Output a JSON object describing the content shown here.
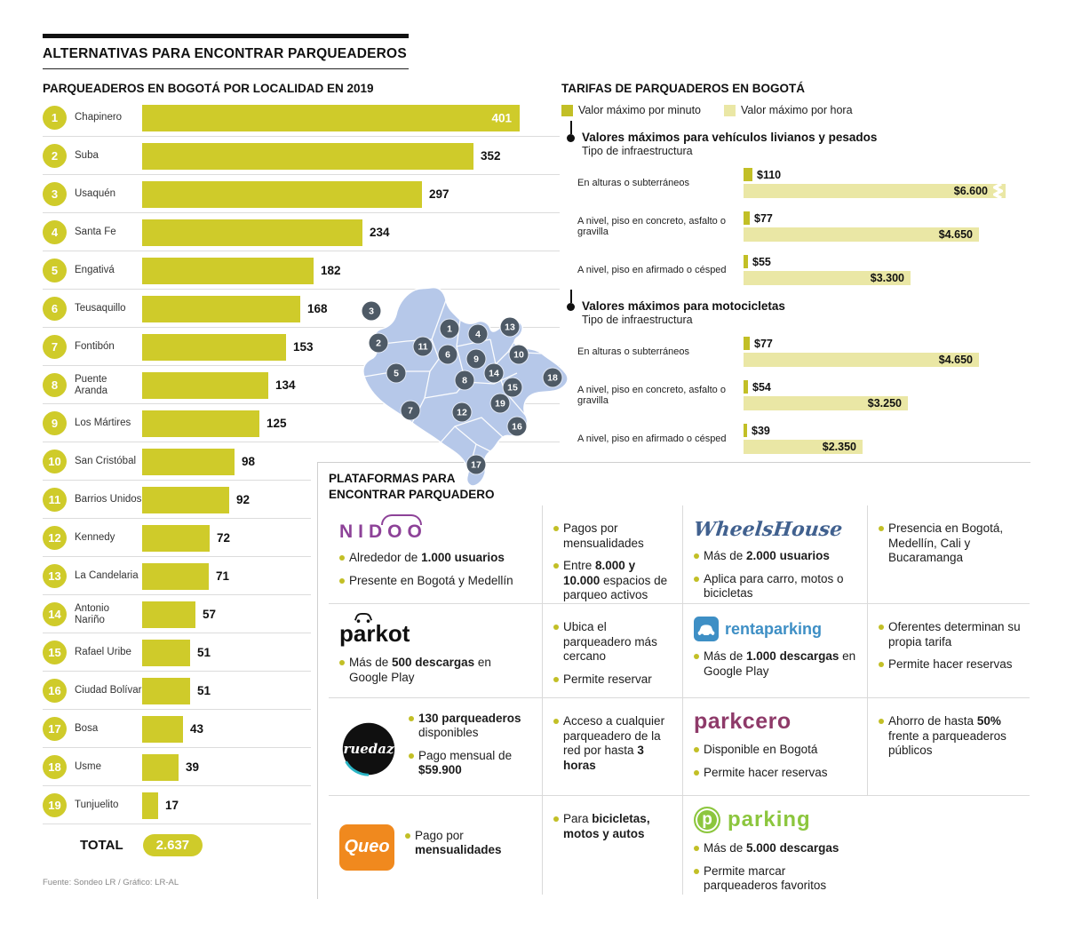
{
  "header": {
    "title": "ALTERNATIVAS PARA ENCONTRAR PARQUEADEROS"
  },
  "localities": {
    "title": "PARQUEADEROS EN BOGOTÁ POR LOCALIDAD EN 2019",
    "max": 401,
    "rows": [
      {
        "rank": "1",
        "name": "Chapinero",
        "value": 401,
        "inside": true
      },
      {
        "rank": "2",
        "name": "Suba",
        "value": 352
      },
      {
        "rank": "3",
        "name": "Usaquén",
        "value": 297
      },
      {
        "rank": "4",
        "name": "Santa Fe",
        "value": 234
      },
      {
        "rank": "5",
        "name": "Engativá",
        "value": 182
      },
      {
        "rank": "6",
        "name": "Teusaquillo",
        "value": 168
      },
      {
        "rank": "7",
        "name": "Fontibón",
        "value": 153
      },
      {
        "rank": "8",
        "name": "Puente Aranda",
        "value": 134
      },
      {
        "rank": "9",
        "name": "Los Mártires",
        "value": 125
      },
      {
        "rank": "10",
        "name": "San Cristóbal",
        "value": 98
      },
      {
        "rank": "11",
        "name": "Barrios Unidos",
        "value": 92
      },
      {
        "rank": "12",
        "name": "Kennedy",
        "value": 72
      },
      {
        "rank": "13",
        "name": "La Candelaria",
        "value": 71
      },
      {
        "rank": "14",
        "name": "Antonio Nariño",
        "value": 57
      },
      {
        "rank": "15",
        "name": "Rafael Uribe",
        "value": 51
      },
      {
        "rank": "16",
        "name": "Ciudad Bolívar",
        "value": 51
      },
      {
        "rank": "17",
        "name": "Bosa",
        "value": 43
      },
      {
        "rank": "18",
        "name": "Usme",
        "value": 39
      },
      {
        "rank": "19",
        "name": "Tunjuelito",
        "value": 17
      }
    ],
    "total_label": "TOTAL",
    "total_value": "2.637",
    "source": "Fuente: Sondeo LR / Gráfico: LR-AL"
  },
  "map": {
    "markers": [
      {
        "n": "3",
        "x": 52,
        "y": 30
      },
      {
        "n": "2",
        "x": 60,
        "y": 66
      },
      {
        "n": "11",
        "x": 110,
        "y": 70
      },
      {
        "n": "1",
        "x": 140,
        "y": 50
      },
      {
        "n": "4",
        "x": 172,
        "y": 56
      },
      {
        "n": "13",
        "x": 208,
        "y": 48
      },
      {
        "n": "6",
        "x": 138,
        "y": 79
      },
      {
        "n": "9",
        "x": 170,
        "y": 84
      },
      {
        "n": "10",
        "x": 218,
        "y": 79
      },
      {
        "n": "5",
        "x": 80,
        "y": 100
      },
      {
        "n": "14",
        "x": 190,
        "y": 100
      },
      {
        "n": "8",
        "x": 157,
        "y": 108
      },
      {
        "n": "15",
        "x": 211,
        "y": 116
      },
      {
        "n": "18",
        "x": 256,
        "y": 105
      },
      {
        "n": "7",
        "x": 96,
        "y": 142
      },
      {
        "n": "12",
        "x": 154,
        "y": 144
      },
      {
        "n": "19",
        "x": 197,
        "y": 134
      },
      {
        "n": "16",
        "x": 216,
        "y": 160
      },
      {
        "n": "17",
        "x": 170,
        "y": 203
      }
    ]
  },
  "tariffs": {
    "title": "TARIFAS DE PARQUADEROS EN BOGOTÁ",
    "legend": [
      {
        "label": "Valor máximo por minuto"
      },
      {
        "label": "Valor máximo por hora"
      }
    ],
    "groups": [
      {
        "title": "Valores máximos para vehículos livianos y pesados",
        "subtitle": "Tipo de infraestructura",
        "rows": [
          {
            "label": "En alturas o subterráneos",
            "minute_label": "$110",
            "minute": 110,
            "hour_label": "$6.600",
            "hour": 6600,
            "break": true
          },
          {
            "label": "A nivel, piso en concreto, asfalto o gravilla",
            "minute_label": "$77",
            "minute": 77,
            "hour_label": "$4.650",
            "hour": 4650
          },
          {
            "label": "A nivel, piso en afirmado o césped",
            "minute_label": "$55",
            "minute": 55,
            "hour_label": "$3.300",
            "hour": 3300
          }
        ]
      },
      {
        "title": "Valores máximos para motocicletas",
        "subtitle": "Tipo de infraestructura",
        "rows": [
          {
            "label": "En alturas o subterráneos",
            "minute_label": "$77",
            "minute": 77,
            "hour_label": "$4.650",
            "hour": 4650
          },
          {
            "label": "A nivel, piso en concreto, asfalto o gravilla",
            "minute_label": "$54",
            "minute": 54,
            "hour_label": "$3.250",
            "hour": 3250
          },
          {
            "label": "A nivel, piso en afirmado o césped",
            "minute_label": "$39",
            "minute": 39,
            "hour_label": "$2.350",
            "hour": 2350
          }
        ]
      }
    ]
  },
  "platforms": {
    "title_line1": "PLATAFORMAS PARA",
    "title_line2": "ENCONTRAR PARQUADERO",
    "logos": {
      "nidoo": "NIDOO",
      "wheelshouse": "WheelsHouse",
      "parkot": "parkot",
      "rentaparking": "rentaparking",
      "ruedaz": "ruedaz",
      "parkcero": "parkcero",
      "queo": "Queo",
      "parking": "parking"
    },
    "grid": [
      [
        {
          "logo": "nidoo",
          "facts": [
            [
              {
                "t": "Alrededor de "
              },
              {
                "t": "1.000 usuarios",
                "b": true
              }
            ],
            [
              {
                "t": "Presente en Bogotá y Medellín"
              }
            ]
          ]
        },
        {
          "facts": [
            [
              {
                "t": "Pagos por mensualidades"
              }
            ],
            [
              {
                "t": "Entre "
              },
              {
                "t": "8.000 y 10.000",
                "b": true
              },
              {
                "t": " espacios de parqueo activos"
              }
            ]
          ]
        },
        {
          "logo": "wheelshouse",
          "facts": [
            [
              {
                "t": "Más de "
              },
              {
                "t": "2.000 usuarios",
                "b": true
              }
            ],
            [
              {
                "t": "Aplica para carro, motos o bicicletas"
              }
            ]
          ]
        },
        {
          "facts": [
            [
              {
                "t": "Presencia en Bogotá, Medellín, Cali y Bucaramanga"
              }
            ]
          ]
        }
      ],
      [
        {
          "logo": "parkot",
          "facts": [
            [
              {
                "t": "Más de "
              },
              {
                "t": "500 descargas",
                "b": true
              },
              {
                "t": " en Google Play"
              }
            ]
          ]
        },
        {
          "facts": [
            [
              {
                "t": "Ubica el parqueadero más cercano"
              }
            ],
            [
              {
                "t": "Permite reservar"
              }
            ]
          ]
        },
        {
          "logo": "rentaparking",
          "facts": [
            [
              {
                "t": "Más de "
              },
              {
                "t": "1.000 descargas",
                "b": true
              },
              {
                "t": " en Google Play"
              }
            ]
          ]
        },
        {
          "facts": [
            [
              {
                "t": "Oferentes determinan su propia tarifa"
              }
            ],
            [
              {
                "t": "Permite hacer reservas"
              }
            ]
          ]
        }
      ],
      [
        {
          "logo": "ruedaz",
          "side": true,
          "facts": [
            [
              {
                "t": "130 parqueaderos",
                "b": true
              },
              {
                "t": " disponibles"
              }
            ],
            [
              {
                "t": "Pago mensual de "
              },
              {
                "t": "$59.900",
                "b": true
              }
            ]
          ]
        },
        {
          "facts": [
            [
              {
                "t": "Acceso a cualquier parqueadero de la red por hasta "
              },
              {
                "t": "3 horas",
                "b": true
              }
            ]
          ]
        },
        {
          "logo": "parkcero",
          "facts": [
            [
              {
                "t": "Disponible en Bogotá"
              }
            ],
            [
              {
                "t": "Permite hacer reservas"
              }
            ]
          ]
        },
        {
          "facts": [
            [
              {
                "t": "Ahorro de hasta "
              },
              {
                "t": "50%",
                "b": true
              },
              {
                "t": " frente a parqueaderos públicos"
              }
            ]
          ]
        }
      ],
      [
        {
          "logo": "queo",
          "side": true,
          "facts": [
            [
              {
                "t": "Pago por "
              },
              {
                "t": "mensualidades",
                "b": true
              }
            ]
          ]
        },
        {
          "facts": [
            [
              {
                "t": "Para "
              },
              {
                "t": "bicicletas, motos y autos",
                "b": true
              }
            ]
          ]
        },
        {
          "logo": "parking",
          "facts": [
            [
              {
                "t": "Más de "
              },
              {
                "t": "5.000 descargas",
                "b": true
              }
            ],
            [
              {
                "t": "Permite marcar parqueaderos favoritos"
              }
            ]
          ]
        },
        {
          "facts": []
        }
      ]
    ]
  },
  "colors": {
    "bar_olive": "#cfcb2a",
    "minute_olive": "#c2bf26",
    "hour_light": "#eae7a5",
    "map_blue": "#b6c8e9",
    "marker_slate": "#4e5a66"
  },
  "chart_data": [
    {
      "type": "bar",
      "orientation": "horizontal",
      "title": "PARQUEADEROS EN BOGOTÁ POR LOCALIDAD EN 2019",
      "categories": [
        "Chapinero",
        "Suba",
        "Usaquén",
        "Santa Fe",
        "Engativá",
        "Teusaquillo",
        "Fontibón",
        "Puente Aranda",
        "Los Mártires",
        "San Cristóbal",
        "Barrios Unidos",
        "Kennedy",
        "La Candelaria",
        "Antonio Nariño",
        "Rafael Uribe",
        "Ciudad Bolívar",
        "Bosa",
        "Usme",
        "Tunjuelito"
      ],
      "values": [
        401,
        352,
        297,
        234,
        182,
        168,
        153,
        134,
        125,
        98,
        92,
        72,
        71,
        57,
        51,
        51,
        43,
        39,
        17
      ],
      "total": 2637,
      "xlim": [
        0,
        401
      ],
      "source": "Fuente: Sondeo LR / Gráfico: LR-AL"
    },
    {
      "type": "bar",
      "orientation": "horizontal",
      "title": "TARIFAS DE PARQUADEROS EN BOGOTÁ",
      "legend": [
        "Valor máximo por minuto",
        "Valor máximo por hora"
      ],
      "groups": [
        {
          "name": "Valores máximos para vehículos livianos y pesados",
          "categories": [
            "En alturas o subterráneos",
            "A nivel, piso en concreto, asfalto o gravilla",
            "A nivel, piso en afirmado o césped"
          ],
          "series": [
            {
              "name": "Valor máximo por minuto",
              "values": [
                110,
                77,
                55
              ]
            },
            {
              "name": "Valor máximo por hora",
              "values": [
                6600,
                4650,
                3300
              ]
            }
          ]
        },
        {
          "name": "Valores máximos para motocicletas",
          "categories": [
            "En alturas o subterráneos",
            "A nivel, piso en concreto, asfalto o gravilla",
            "A nivel, piso en afirmado o césped"
          ],
          "series": [
            {
              "name": "Valor máximo por minuto",
              "values": [
                77,
                54,
                39
              ]
            },
            {
              "name": "Valor máximo por hora",
              "values": [
                4650,
                3250,
                2350
              ]
            }
          ]
        }
      ]
    }
  ]
}
